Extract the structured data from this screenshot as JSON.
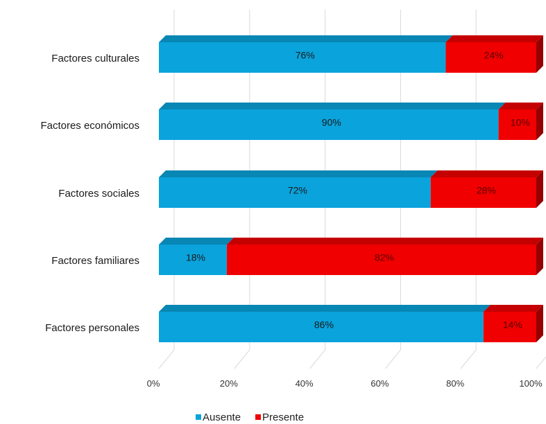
{
  "chart_data": {
    "type": "bar",
    "orientation": "horizontal",
    "stacked": "percent",
    "categories": [
      "Factores culturales",
      "Factores económicos",
      "Factores sociales",
      "Factores familiares",
      "Factores personales"
    ],
    "series": [
      {
        "name": "Ausente",
        "values": [
          76,
          90,
          72,
          18,
          86
        ],
        "labels": [
          "76%",
          "90%",
          "72%",
          "18%",
          "86%"
        ],
        "color": "#0aa3dc"
      },
      {
        "name": "Presente",
        "values": [
          24,
          10,
          28,
          82,
          14
        ],
        "labels": [
          "24%",
          "10%",
          "28%",
          "82%",
          "14%"
        ],
        "color": "#f00000"
      }
    ],
    "xlim": [
      0,
      100
    ],
    "x_ticks": [
      "0%",
      "20%",
      "40%",
      "60%",
      "80%",
      "100%"
    ],
    "grid": true,
    "legend_position": "bottom",
    "style": "3d"
  }
}
